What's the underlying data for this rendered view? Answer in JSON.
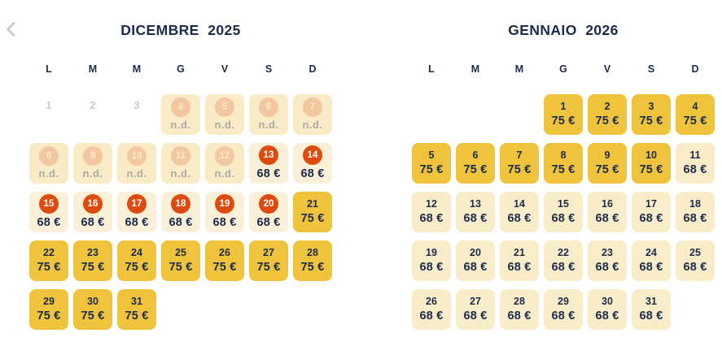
{
  "nav": {
    "prev_button": "previous-month"
  },
  "colors": {
    "navy": "#1B2B4B",
    "yellow": "#F0C33C",
    "cream": "#F9EDC9",
    "cream-light": "#FAF0D8",
    "cream-nd": "#F8EBC5",
    "orange": "#DE4B0F",
    "peach": "#F3C79F",
    "peach-num": "#FAEACB",
    "gray-disabled": "#C4CAD2",
    "gray-nd": "#ACABA7",
    "chevron": "#C9CED4"
  },
  "months": [
    {
      "title": "DICEMBRE  2025",
      "weekdays": [
        "L",
        "M",
        "M",
        "G",
        "V",
        "S",
        "D"
      ],
      "leading_blanks": 0,
      "days": [
        {
          "d": "1",
          "t": "disabled"
        },
        {
          "d": "2",
          "t": "disabled"
        },
        {
          "d": "3",
          "t": "disabled"
        },
        {
          "d": "4",
          "t": "na",
          "label": "n.d."
        },
        {
          "d": "5",
          "t": "na",
          "label": "n.d."
        },
        {
          "d": "6",
          "t": "na",
          "label": "n.d."
        },
        {
          "d": "7",
          "t": "na",
          "label": "n.d."
        },
        {
          "d": "8",
          "t": "na",
          "label": "n.d."
        },
        {
          "d": "9",
          "t": "na",
          "label": "n.d."
        },
        {
          "d": "10",
          "t": "na",
          "label": "n.d."
        },
        {
          "d": "11",
          "t": "na",
          "label": "n.d."
        },
        {
          "d": "12",
          "t": "na",
          "label": "n.d."
        },
        {
          "d": "13",
          "t": "deal",
          "price": "68 €"
        },
        {
          "d": "14",
          "t": "deal",
          "price": "68 €"
        },
        {
          "d": "15",
          "t": "deal",
          "price": "68 €"
        },
        {
          "d": "16",
          "t": "deal",
          "price": "68 €"
        },
        {
          "d": "17",
          "t": "deal",
          "price": "68 €"
        },
        {
          "d": "18",
          "t": "deal",
          "price": "68 €"
        },
        {
          "d": "19",
          "t": "deal",
          "price": "68 €"
        },
        {
          "d": "20",
          "t": "deal",
          "price": "68 €"
        },
        {
          "d": "21",
          "t": "high",
          "price": "75 €"
        },
        {
          "d": "22",
          "t": "high",
          "price": "75 €"
        },
        {
          "d": "23",
          "t": "high",
          "price": "75 €"
        },
        {
          "d": "24",
          "t": "high",
          "price": "75 €"
        },
        {
          "d": "25",
          "t": "high",
          "price": "75 €"
        },
        {
          "d": "26",
          "t": "high",
          "price": "75 €"
        },
        {
          "d": "27",
          "t": "high",
          "price": "75 €"
        },
        {
          "d": "28",
          "t": "high",
          "price": "75 €"
        },
        {
          "d": "29",
          "t": "high",
          "price": "75 €"
        },
        {
          "d": "30",
          "t": "high",
          "price": "75 €"
        },
        {
          "d": "31",
          "t": "high",
          "price": "75 €"
        }
      ]
    },
    {
      "title": "GENNAIO  2026",
      "weekdays": [
        "L",
        "M",
        "M",
        "G",
        "V",
        "S",
        "D"
      ],
      "leading_blanks": 3,
      "days": [
        {
          "d": "1",
          "t": "high",
          "price": "75 €"
        },
        {
          "d": "2",
          "t": "high",
          "price": "75 €"
        },
        {
          "d": "3",
          "t": "high",
          "price": "75 €"
        },
        {
          "d": "4",
          "t": "high",
          "price": "75 €"
        },
        {
          "d": "5",
          "t": "high",
          "price": "75 €"
        },
        {
          "d": "6",
          "t": "high",
          "price": "75 €"
        },
        {
          "d": "7",
          "t": "high",
          "price": "75 €"
        },
        {
          "d": "8",
          "t": "high",
          "price": "75 €"
        },
        {
          "d": "9",
          "t": "high",
          "price": "75 €"
        },
        {
          "d": "10",
          "t": "high",
          "price": "75 €"
        },
        {
          "d": "11",
          "t": "low",
          "price": "68 €"
        },
        {
          "d": "12",
          "t": "low",
          "price": "68 €"
        },
        {
          "d": "13",
          "t": "low",
          "price": "68 €"
        },
        {
          "d": "14",
          "t": "low",
          "price": "68 €"
        },
        {
          "d": "15",
          "t": "low",
          "price": "68 €"
        },
        {
          "d": "16",
          "t": "low",
          "price": "68 €"
        },
        {
          "d": "17",
          "t": "low",
          "price": "68 €"
        },
        {
          "d": "18",
          "t": "low",
          "price": "68 €"
        },
        {
          "d": "19",
          "t": "low",
          "price": "68 €"
        },
        {
          "d": "20",
          "t": "low",
          "price": "68 €"
        },
        {
          "d": "21",
          "t": "low",
          "price": "68 €"
        },
        {
          "d": "22",
          "t": "low",
          "price": "68 €"
        },
        {
          "d": "23",
          "t": "low",
          "price": "68 €"
        },
        {
          "d": "24",
          "t": "low",
          "price": "68 €"
        },
        {
          "d": "25",
          "t": "low",
          "price": "68 €"
        },
        {
          "d": "26",
          "t": "low",
          "price": "68 €"
        },
        {
          "d": "27",
          "t": "low",
          "price": "68 €"
        },
        {
          "d": "28",
          "t": "low",
          "price": "68 €"
        },
        {
          "d": "29",
          "t": "low",
          "price": "68 €"
        },
        {
          "d": "30",
          "t": "low",
          "price": "68 €"
        },
        {
          "d": "31",
          "t": "low",
          "price": "68 €"
        }
      ]
    }
  ]
}
